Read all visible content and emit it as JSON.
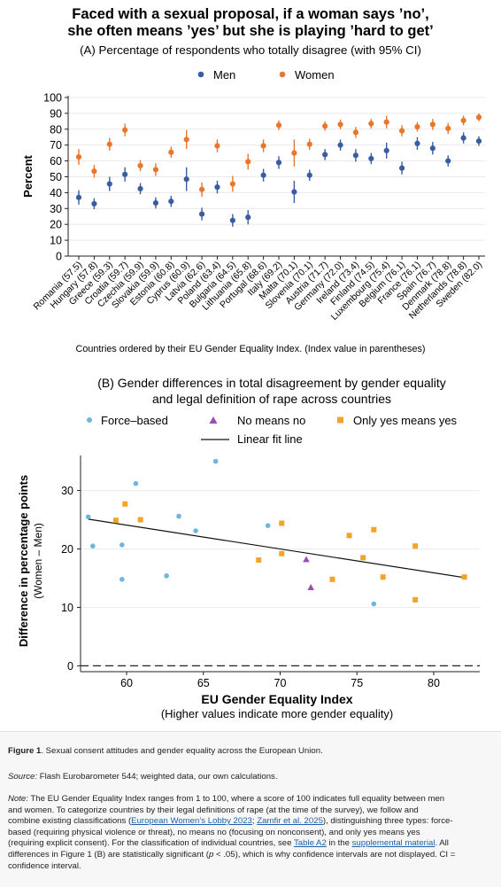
{
  "chart_data": [
    {
      "type": "scatter",
      "panel": "A",
      "title": "Faced with a sexual proposal, if a woman says ’no’,",
      "title_line2": "she often means ’yes’ but she is playing ’hard to get’",
      "subtitle": "(A) Percentage of respondents who totally disagree (with 95% CI)",
      "ylabel": "Percent",
      "xlabel": "Countries ordered by their EU Gender Equality Index. (Index value in parentheses)",
      "ylim": [
        0,
        100
      ],
      "yticks": [
        0,
        10,
        20,
        30,
        40,
        50,
        60,
        70,
        80,
        90,
        100
      ],
      "grid": true,
      "legend_position": "top",
      "categories": [
        "Romania (57.5)",
        "Hungary (57.8)",
        "Greece (59.3)",
        "Croatia (59.7)",
        "Czechia (59.9)",
        "Slovakia (59.9)",
        "Estonia (60.8)",
        "Cyprus (60.9)",
        "Latvia (62.6)",
        "Poland (63.4)",
        "Bulgaria (64.5)",
        "Lithuania (65.8)",
        "Portugal (68.6)",
        "Italy (69.2)",
        "Malta (70.1)",
        "Slovenia (70.1)",
        "Austria (71.7)",
        "Germany (72.0)",
        "Ireland (73.4)",
        "Finland (74.5)",
        "Luxembourg (75.4)",
        "Belgium (76.1)",
        "France (76.1)",
        "Spain (76.7)",
        "Denmark (78.8)",
        "Netherlands (78.8)",
        "Sweden (82.0)"
      ],
      "series": [
        {
          "name": "Men",
          "color": "#3a5d9f",
          "values": [
            37,
            33,
            45.5,
            51.5,
            42.5,
            33.5,
            34.5,
            48.5,
            26.5,
            43.5,
            22.5,
            24.5,
            51,
            59,
            40.5,
            51,
            64,
            70,
            63.5,
            61.5,
            66.5,
            55.5,
            71,
            68,
            60,
            74.5,
            72.5
          ],
          "ci_low": [
            32.5,
            29.5,
            41,
            47,
            39,
            30,
            31,
            41,
            22.5,
            39.5,
            18.5,
            20,
            47,
            55,
            33.5,
            47.5,
            60.5,
            66.5,
            59.5,
            58,
            61.5,
            51.5,
            67,
            64,
            56.5,
            71,
            69.5
          ],
          "ci_high": [
            41.5,
            36.5,
            50,
            56,
            46,
            37,
            38,
            56,
            30.5,
            47.5,
            26.5,
            29,
            55,
            63,
            47.5,
            54.5,
            67.5,
            73.5,
            67.5,
            65,
            71.5,
            59.5,
            75,
            72,
            63.5,
            78,
            75.5
          ]
        },
        {
          "name": "Women",
          "color": "#e8772e",
          "values": [
            62.5,
            53.5,
            70.5,
            79.5,
            57,
            54.5,
            65.5,
            73.5,
            42,
            69.5,
            45.5,
            59.5,
            69.5,
            82.5,
            65,
            70.5,
            82,
            83,
            78,
            83.5,
            84.5,
            79,
            81.5,
            83,
            80.5,
            85.5,
            87.5
          ]
        }
      ],
      "ci_women_low": [
        57.5,
        49.5,
        66.5,
        75.5,
        53.5,
        50.5,
        62,
        67.5,
        37.5,
        65.5,
        40.5,
        54.5,
        65.5,
        79.5,
        56.5,
        67,
        79,
        80,
        74.5,
        80.5,
        80.5,
        75.5,
        78.5,
        79.5,
        77,
        82.5,
        85
      ]
    },
    {
      "type": "scatter",
      "panel": "B",
      "title": "(B) Gender differences in total disagreement by gender equality",
      "title_line2": "and legal definition of rape across countries",
      "xlabel": "EU Gender Equality Index",
      "xlabel_sub": "(Higher values indicate more gender equality)",
      "ylabel": "Difference in percentage points",
      "ylabel_sub": "(Women – Men)",
      "xlim": [
        57,
        83
      ],
      "ylim": [
        -1,
        36
      ],
      "xticks": [
        60,
        65,
        70,
        75,
        80
      ],
      "yticks": [
        0,
        10,
        20,
        30
      ],
      "grid": true,
      "legend_position": "top",
      "series": [
        {
          "name": "Force–based",
          "marker": "circle",
          "color": "#6fb6dc",
          "points": [
            [
              57.5,
              25.5
            ],
            [
              57.8,
              20.5
            ],
            [
              59.7,
              14.8
            ],
            [
              59.7,
              20.7
            ],
            [
              60.6,
              31.2
            ],
            [
              62.6,
              15.4
            ],
            [
              63.4,
              25.6
            ],
            [
              64.5,
              23.1
            ],
            [
              65.8,
              35
            ],
            [
              69.2,
              24
            ],
            [
              76.1,
              10.6
            ]
          ]
        },
        {
          "name": "No means no",
          "marker": "triangle",
          "color": "#9b4fb5",
          "points": [
            [
              71.7,
              18.2
            ],
            [
              72.0,
              13.4
            ]
          ]
        },
        {
          "name": "Only yes means yes",
          "marker": "square",
          "color": "#f2a42a",
          "points": [
            [
              59.3,
              24.9
            ],
            [
              59.9,
              27.7
            ],
            [
              60.9,
              25
            ],
            [
              68.6,
              18.1
            ],
            [
              70.1,
              24.4
            ],
            [
              70.1,
              19.2
            ],
            [
              73.4,
              14.8
            ],
            [
              74.5,
              22.3
            ],
            [
              75.4,
              18.5
            ],
            [
              76.1,
              23.3
            ],
            [
              76.7,
              15.2
            ],
            [
              78.8,
              20.5
            ],
            [
              78.8,
              11.3
            ],
            [
              82.0,
              15.2
            ]
          ]
        },
        {
          "name": "Linear fit line",
          "type": "line",
          "color": "#111111",
          "points": [
            [
              57.5,
              25.1
            ],
            [
              82.0,
              15.1
            ]
          ]
        }
      ]
    }
  ],
  "caption": {
    "figure_label": "Figure 1",
    "figure_text": ". Sexual consent attitudes and gender equality across the European Union.",
    "source_label": "Source:",
    "source_text": " Flash Eurobarometer 544; weighted data, our own calculations.",
    "note_label": "Note:",
    "note_lines": [
      " The EU Gender Equality Index ranges from 1 to 100, where a score of 100 indicates full equality between men",
      "and women. To categorize countries by their legal definitions of rape (at the time of the survey), we follow and",
      "combine existing classifications (",
      "based (requiring physical violence or threat), no means no (focusing on nonconsent), and only yes means yes",
      "(requiring explicit consent). For the classification of individual countries, see ",
      "differences in Figure 1 (B) are statistically significant (",
      "confidence interval."
    ],
    "link_ewl": "European Women’s Lobby 2023",
    "sep": "; ",
    "link_zamfir": "Zamfir et al. 2025",
    "after_links": "), distinguishing three types: force-",
    "link_table": "Table A2",
    "in_the": " in the ",
    "link_supp": "supplemental material",
    "after_supp": ". All",
    "p_text": "p",
    "after_p": " < .05), which is why confidence intervals are not displayed. CI ="
  }
}
